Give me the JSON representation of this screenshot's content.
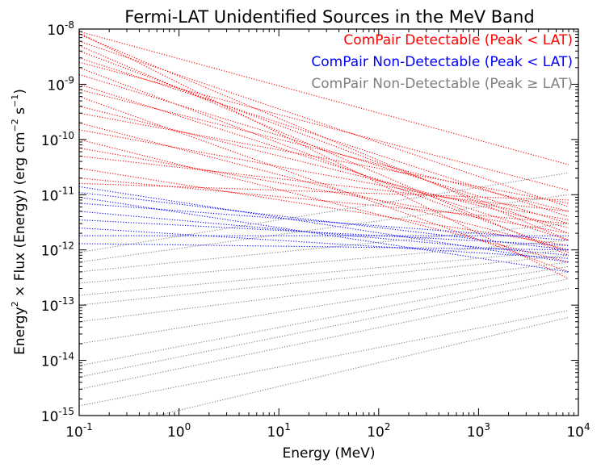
{
  "chart_data": {
    "type": "line",
    "title": "Fermi-LAT Unidentified Sources in the MeV Band",
    "xlabel": "Energy (MeV)",
    "ylabel": {
      "part1": "Energy",
      "sup1": "2",
      "part2": " × Flux (Energy) (erg cm",
      "sup2": "−2",
      "part3": " s",
      "sup3": "−1",
      "part4": ")"
    },
    "xscale": "log",
    "yscale": "log",
    "xlim": [
      0.1,
      10000
    ],
    "ylim": [
      1e-15,
      1e-08
    ],
    "x_ticks": [
      {
        "base": "10",
        "exp": "-1"
      },
      {
        "base": "10",
        "exp": "0"
      },
      {
        "base": "10",
        "exp": "1"
      },
      {
        "base": "10",
        "exp": "2"
      },
      {
        "base": "10",
        "exp": "3"
      },
      {
        "base": "10",
        "exp": "4"
      }
    ],
    "y_ticks": [
      {
        "base": "10",
        "exp": "-15"
      },
      {
        "base": "10",
        "exp": "-14"
      },
      {
        "base": "10",
        "exp": "-13"
      },
      {
        "base": "10",
        "exp": "-12"
      },
      {
        "base": "10",
        "exp": "-11"
      },
      {
        "base": "10",
        "exp": "-10"
      },
      {
        "base": "10",
        "exp": "-9"
      },
      {
        "base": "10",
        "exp": "-8"
      }
    ],
    "legend_position": "top-right",
    "legend": [
      {
        "label": "ComPair Detectable (Peak < LAT)",
        "color": "#ff0000"
      },
      {
        "label": "ComPair Non-Detectable (Peak < LAT)",
        "color": "#0000ff"
      },
      {
        "label": "ComPair Non-Detectable (Peak ≥ LAT)",
        "color": "#808080"
      }
    ],
    "line_style": "dotted",
    "x_range_of_lines": [
      0.1,
      8000
    ],
    "series": [
      {
        "color": "#ff0000",
        "points": [
          [
            0.1,
            9e-09
          ],
          [
            8000,
            3.5e-11
          ]
        ]
      },
      {
        "color": "#ff0000",
        "points": [
          [
            0.1,
            8e-09
          ],
          [
            8000,
            1.5e-12
          ]
        ]
      },
      {
        "color": "#ff0000",
        "points": [
          [
            0.1,
            8.5e-09
          ],
          [
            8000,
            3e-13
          ]
        ]
      },
      {
        "color": "#ff0000",
        "points": [
          [
            0.1,
            6e-09
          ],
          [
            8000,
            6e-12
          ]
        ]
      },
      {
        "color": "#ff0000",
        "points": [
          [
            0.1,
            5e-09
          ],
          [
            8000,
            8e-13
          ]
        ]
      },
      {
        "color": "#ff0000",
        "points": [
          [
            0.1,
            4e-09
          ],
          [
            8000,
            2e-12
          ]
        ]
      },
      {
        "color": "#ff0000",
        "points": [
          [
            0.1,
            3e-09
          ],
          [
            8000,
            4e-12
          ]
        ]
      },
      {
        "color": "#ff0000",
        "points": [
          [
            0.1,
            2.5e-09
          ],
          [
            8000,
            1.2e-11
          ]
        ]
      },
      {
        "color": "#ff0000",
        "points": [
          [
            0.1,
            2e-09
          ],
          [
            8000,
            9e-13
          ]
        ]
      },
      {
        "color": "#ff0000",
        "points": [
          [
            0.1,
            1.5e-09
          ],
          [
            8000,
            3e-12
          ]
        ]
      },
      {
        "color": "#ff0000",
        "points": [
          [
            0.1,
            1e-09
          ],
          [
            8000,
            1.5e-12
          ]
        ]
      },
      {
        "color": "#ff0000",
        "points": [
          [
            0.1,
            8e-10
          ],
          [
            8000,
            5e-12
          ]
        ]
      },
      {
        "color": "#ff0000",
        "points": [
          [
            0.1,
            6e-10
          ],
          [
            8000,
            4e-13
          ]
        ]
      },
      {
        "color": "#ff0000",
        "points": [
          [
            0.1,
            4e-10
          ],
          [
            8000,
            2.5e-12
          ]
        ]
      },
      {
        "color": "#ff0000",
        "points": [
          [
            0.1,
            3e-10
          ],
          [
            8000,
            7e-12
          ]
        ]
      },
      {
        "color": "#ff0000",
        "points": [
          [
            0.1,
            2e-10
          ],
          [
            8000,
            1e-12
          ]
        ]
      },
      {
        "color": "#ff0000",
        "points": [
          [
            0.1,
            1.5e-10
          ],
          [
            8000,
            3.5e-12
          ]
        ]
      },
      {
        "color": "#ff0000",
        "points": [
          [
            0.1,
            1e-10
          ],
          [
            8000,
            6e-13
          ]
        ]
      },
      {
        "color": "#ff0000",
        "points": [
          [
            0.1,
            7e-11
          ],
          [
            8000,
            2e-12
          ]
        ]
      },
      {
        "color": "#ff0000",
        "points": [
          [
            0.1,
            5e-11
          ],
          [
            8000,
            5e-12
          ]
        ]
      },
      {
        "color": "#ff0000",
        "points": [
          [
            0.1,
            3e-11
          ],
          [
            8000,
            1.2e-12
          ]
        ]
      },
      {
        "color": "#ff0000",
        "points": [
          [
            0.1,
            2e-11
          ],
          [
            8000,
            3e-12
          ]
        ]
      },
      {
        "color": "#ff0000",
        "points": [
          [
            0.1,
            1.6e-11
          ],
          [
            8000,
            8e-12
          ]
        ]
      },
      {
        "color": "#0000ff",
        "points": [
          [
            0.1,
            1.4e-11
          ],
          [
            8000,
            6e-13
          ]
        ]
      },
      {
        "color": "#0000ff",
        "points": [
          [
            0.1,
            1.1e-11
          ],
          [
            8000,
            1e-12
          ]
        ]
      },
      {
        "color": "#0000ff",
        "points": [
          [
            0.1,
            9e-12
          ],
          [
            8000,
            4e-13
          ]
        ]
      },
      {
        "color": "#0000ff",
        "points": [
          [
            0.1,
            7e-12
          ],
          [
            8000,
            1.5e-12
          ]
        ]
      },
      {
        "color": "#0000ff",
        "points": [
          [
            0.1,
            5e-12
          ],
          [
            8000,
            8e-13
          ]
        ]
      },
      {
        "color": "#0000ff",
        "points": [
          [
            0.1,
            3.5e-12
          ],
          [
            8000,
            1.2e-12
          ]
        ]
      },
      {
        "color": "#0000ff",
        "points": [
          [
            0.1,
            2.5e-12
          ],
          [
            8000,
            7e-13
          ]
        ]
      },
      {
        "color": "#0000ff",
        "points": [
          [
            0.1,
            1.8e-12
          ],
          [
            8000,
            1.8e-12
          ]
        ]
      },
      {
        "color": "#0000ff",
        "points": [
          [
            0.1,
            1.3e-12
          ],
          [
            8000,
            1e-12
          ]
        ]
      },
      {
        "color": "#808080",
        "points": [
          [
            0.1,
            9e-13
          ],
          [
            8000,
            2.5e-11
          ]
        ]
      },
      {
        "color": "#808080",
        "points": [
          [
            0.1,
            6e-13
          ],
          [
            8000,
            1e-11
          ]
        ]
      },
      {
        "color": "#808080",
        "points": [
          [
            0.1,
            4e-13
          ],
          [
            8000,
            3e-12
          ]
        ]
      },
      {
        "color": "#808080",
        "points": [
          [
            0.1,
            2.5e-13
          ],
          [
            8000,
            1.5e-12
          ]
        ]
      },
      {
        "color": "#808080",
        "points": [
          [
            0.1,
            1.5e-13
          ],
          [
            8000,
            1e-12
          ]
        ]
      },
      {
        "color": "#808080",
        "points": [
          [
            0.1,
            1e-13
          ],
          [
            8000,
            8e-13
          ]
        ]
      },
      {
        "color": "#808080",
        "points": [
          [
            0.1,
            5e-14
          ],
          [
            8000,
            6e-13
          ]
        ]
      },
      {
        "color": "#808080",
        "points": [
          [
            0.1,
            2e-14
          ],
          [
            8000,
            5e-13
          ]
        ]
      },
      {
        "color": "#808080",
        "points": [
          [
            0.1,
            8e-15
          ],
          [
            8000,
            4e-13
          ]
        ]
      },
      {
        "color": "#808080",
        "points": [
          [
            0.1,
            5e-15
          ],
          [
            8000,
            3e-13
          ]
        ]
      },
      {
        "color": "#808080",
        "points": [
          [
            0.1,
            3e-15
          ],
          [
            8000,
            2e-13
          ]
        ]
      },
      {
        "color": "#808080",
        "points": [
          [
            0.1,
            1.5e-15
          ],
          [
            8000,
            8e-14
          ]
        ]
      },
      {
        "color": "#808080",
        "points": [
          [
            0.6,
            1e-15
          ],
          [
            8000,
            6e-14
          ]
        ]
      }
    ]
  }
}
